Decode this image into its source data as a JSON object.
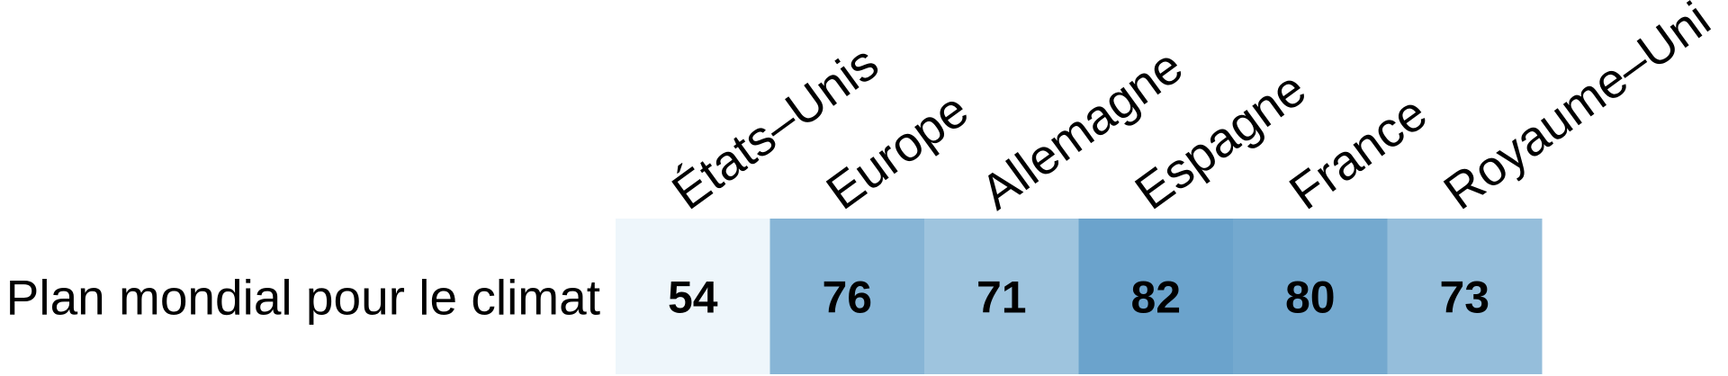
{
  "chart_data": {
    "type": "heatmap",
    "rows": [
      "Plan mondial pour le climat"
    ],
    "columns": [
      "États–Unis",
      "Europe",
      "Allemagne",
      "Espagne",
      "France",
      "Royaume–Uni"
    ],
    "values": [
      [
        54,
        76,
        71,
        82,
        80,
        73
      ]
    ],
    "color_scale": {
      "low_color": "#eef6fb",
      "high_color": "#6ba3cc"
    }
  }
}
